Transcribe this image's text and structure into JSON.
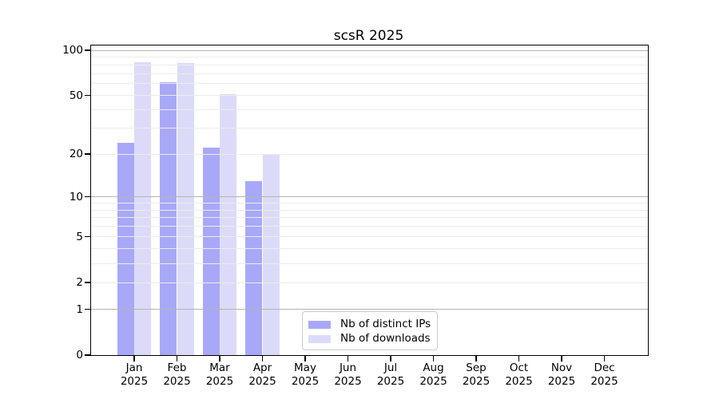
{
  "window": {
    "title": "scsR 2025"
  },
  "chart_data": {
    "type": "bar",
    "title": "scsR 2025",
    "categories": [
      "Jan",
      "Feb",
      "Mar",
      "Apr",
      "May",
      "Jun",
      "Jul",
      "Aug",
      "Sep",
      "Oct",
      "Nov",
      "Dec"
    ],
    "x_year": "2025",
    "series": [
      {
        "name": "Nb of distinct IPs",
        "color": "#a8a8f9",
        "values": [
          24,
          61,
          22,
          13,
          0,
          0,
          0,
          0,
          0,
          0,
          0,
          0
        ]
      },
      {
        "name": "Nb of downloads",
        "color": "#dbdbf9",
        "values": [
          83,
          82,
          51,
          20,
          0,
          0,
          0,
          0,
          0,
          0,
          0,
          0
        ]
      }
    ],
    "y_scale": "log10(1+y)",
    "ylim": [
      0,
      107
    ],
    "y_ticks": [
      100,
      50,
      20,
      10,
      5,
      2,
      1,
      0
    ],
    "y_major_gridlines": [
      1,
      10,
      100
    ],
    "y_minor_gridlines": [
      2,
      3,
      4,
      5,
      6,
      7,
      8,
      9,
      20,
      30,
      40,
      50,
      60,
      70,
      80,
      90
    ],
    "grid": true,
    "legend": {
      "position": "bottom-center-inside",
      "entries": [
        "Nb of distinct IPs",
        "Nb of downloads"
      ]
    },
    "colors": {
      "axis": "#000000",
      "grid_minor": "#ececec",
      "grid_major": "#b3b3b3",
      "legend_border": "#cccccc",
      "background": "#ffffff"
    }
  }
}
